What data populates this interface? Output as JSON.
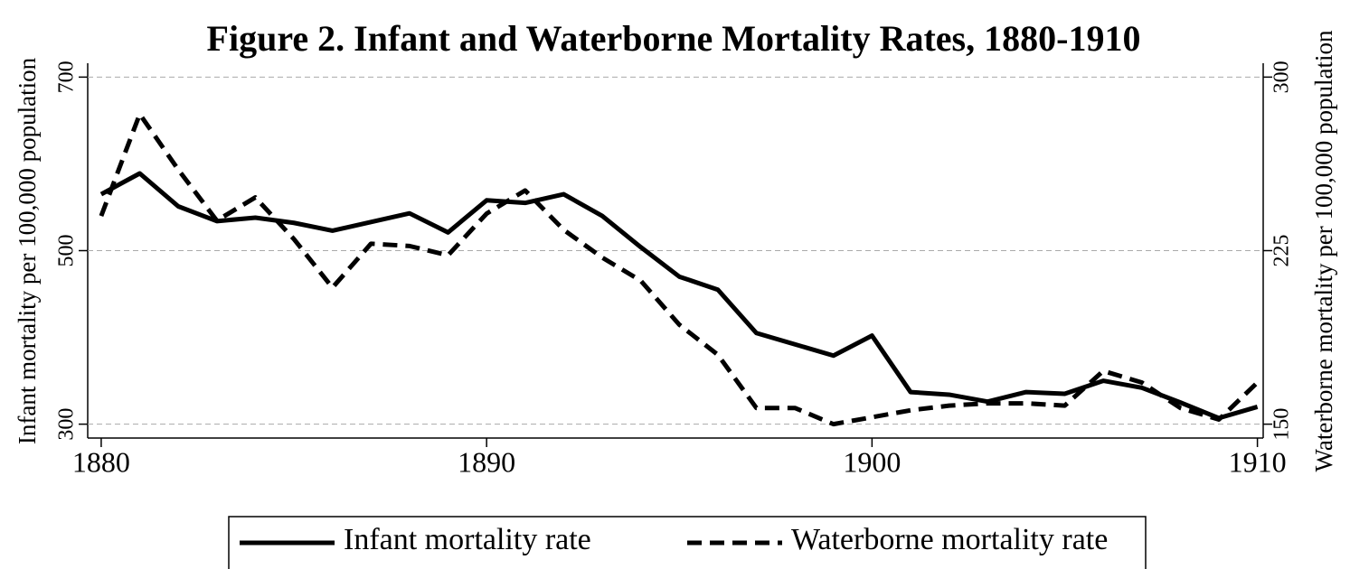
{
  "chart_data": {
    "type": "line",
    "title": "Figure 2. Infant and Waterborne Mortality Rates, 1880-1910",
    "y_label": "Infant mortality per 100,000 population",
    "y2_label": "Waterborne mortality per 100,000 population",
    "x": [
      1880,
      1881,
      1882,
      1883,
      1884,
      1885,
      1886,
      1887,
      1888,
      1889,
      1890,
      1891,
      1892,
      1893,
      1894,
      1895,
      1896,
      1897,
      1898,
      1899,
      1900,
      1901,
      1902,
      1903,
      1904,
      1905,
      1906,
      1907,
      1908,
      1909,
      1910
    ],
    "series": [
      {
        "name": "Infant mortality rate",
        "color": "#000000",
        "linestyle": "solid",
        "values": [
          565,
          589,
          551,
          534,
          538,
          532,
          523,
          533,
          543,
          521,
          558,
          555,
          565,
          540,
          504,
          470,
          455,
          405,
          392,
          379,
          402,
          337,
          334,
          326,
          337,
          335,
          350,
          342,
          325,
          307,
          320
        ]
      },
      {
        "name": "Waterborne mortality rate",
        "color": "#000000",
        "linestyle": "dashed",
        "axis": "y2",
        "values": [
          240,
          284,
          260,
          238,
          248,
          230,
          209,
          228,
          227,
          223,
          241,
          251,
          234,
          222,
          212,
          193,
          180,
          157,
          157,
          150,
          153,
          156,
          158,
          159,
          159,
          158,
          173,
          168,
          157,
          152,
          168
        ]
      }
    ],
    "xlim": [
      1879.65,
      1910.15
    ],
    "xticks": [
      1880,
      1890,
      1900,
      1910
    ],
    "ylim": [
      284,
      716
    ],
    "yticks": [
      300,
      500,
      700
    ],
    "y2lim": [
      144,
      306
    ],
    "y2ticks": [
      150,
      225,
      300
    ],
    "grid": true,
    "legend": "bottom"
  }
}
